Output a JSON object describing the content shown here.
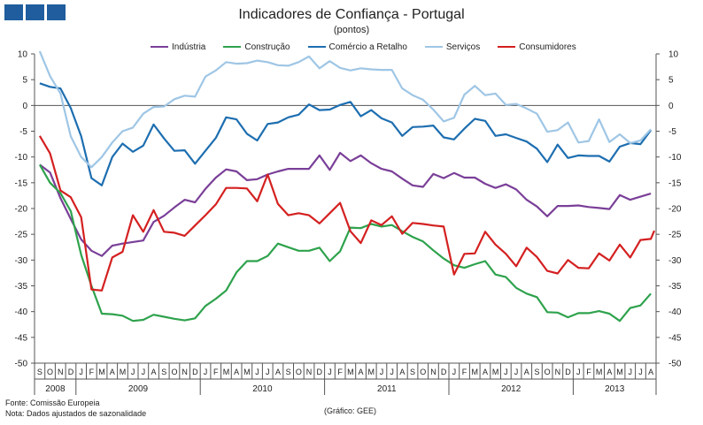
{
  "title": "Indicadores de Confiança - Portugal",
  "subtitle": "(pontos)",
  "footer": {
    "source": "Fonte: Comissão Europeia",
    "note": "Nota: Dados ajustados de sazonalidade",
    "credit": "(Gráfico: GEE)"
  },
  "colors": {
    "brand_blocks": "#1f5d9e",
    "axis": "#444444"
  },
  "chart_data": {
    "type": "line",
    "title": "Indicadores de Confiança - Portugal",
    "subtitle": "(pontos)",
    "ylim": [
      -50,
      10
    ],
    "yticks": [
      10,
      5,
      0,
      -5,
      -10,
      -15,
      -20,
      -25,
      -30,
      -35,
      -40,
      -45,
      -50
    ],
    "y2ticks": [
      10,
      5,
      0,
      -5,
      -10,
      -15,
      -20,
      -25,
      -30,
      -35,
      -40,
      -45,
      -50
    ],
    "grid": false,
    "legend": "top",
    "month_labels": [
      "S",
      "O",
      "N",
      "D",
      "J",
      "F",
      "M",
      "A",
      "M",
      "J",
      "J",
      "A",
      "S",
      "O",
      "N",
      "D",
      "J",
      "F",
      "M",
      "A",
      "M",
      "J",
      "J",
      "A",
      "S",
      "O",
      "N",
      "D",
      "J",
      "F",
      "M",
      "A",
      "M",
      "J",
      "J",
      "A",
      "S",
      "O",
      "N",
      "D",
      "J",
      "F",
      "M",
      "A",
      "M",
      "J",
      "J",
      "A",
      "S",
      "O",
      "N",
      "D",
      "J",
      "F",
      "M",
      "A",
      "M",
      "J",
      "J",
      "A"
    ],
    "year_labels": [
      {
        "label": "2008",
        "start": 0,
        "end": 3
      },
      {
        "label": "2009",
        "start": 4,
        "end": 15
      },
      {
        "label": "2010",
        "start": 16,
        "end": 27
      },
      {
        "label": "2011",
        "start": 28,
        "end": 39
      },
      {
        "label": "2012",
        "start": 40,
        "end": 51
      },
      {
        "label": "2013",
        "start": 52,
        "end": 59
      }
    ],
    "series": [
      {
        "name": "Indústria",
        "color": "#7a3f98",
        "values": [
          -11.5,
          -13,
          -18,
          -22,
          -26,
          -28.2,
          -29.2,
          -27.2,
          -26.8,
          -26.5,
          -26.2,
          -22.6,
          -21.4,
          -19.8,
          -18.3,
          -18.8,
          -16.2,
          -14,
          -12.4,
          -12.8,
          -14.5,
          -14.3,
          -13.4,
          -12.8,
          -12.3,
          -12.3,
          -12.3,
          -9.7,
          -12.5,
          -9.2,
          -10.8,
          -9.7,
          -11.2,
          -12.3,
          -12.8,
          -14.2,
          -15.5,
          -15.8,
          -13.3,
          -14.1,
          -13.1,
          -14,
          -14,
          -15.2,
          -16,
          -15.3,
          -16.3,
          -18.3,
          -19.6,
          -21.5,
          -19.5,
          -19.5,
          -19.4,
          -19.7,
          -19.9,
          -20.1,
          -17.4,
          -18.3,
          -17.7,
          -17.1
        ]
      },
      {
        "name": "Construção",
        "color": "#2ea24c",
        "values": [
          -11.5,
          -15,
          -17,
          -20.5,
          -29,
          -35,
          -40.4,
          -40.5,
          -40.8,
          -41.8,
          -41.6,
          -40.6,
          -41,
          -41.4,
          -41.7,
          -41.3,
          -38.9,
          -37.5,
          -35.9,
          -32.4,
          -30.2,
          -30.2,
          -29.2,
          -26.8,
          -27.5,
          -28.2,
          -28.2,
          -27.6,
          -30.2,
          -28.3,
          -23.7,
          -23.8,
          -23,
          -23.5,
          -23.2,
          -24.4,
          -25.5,
          -26.4,
          -28.1,
          -29.7,
          -31,
          -31.5,
          -30.8,
          -30.2,
          -32.8,
          -33.3,
          -35.4,
          -36.5,
          -37.2,
          -40.1,
          -40.2,
          -41.1,
          -40.3,
          -40.3,
          -39.9,
          -40.4,
          -41.8,
          -39.3,
          -38.8,
          -36.5
        ]
      },
      {
        "name": "Comércio a Retalho",
        "color": "#1d6eb0",
        "values": [
          4.3,
          3.6,
          3.3,
          -0.5,
          -6,
          -14.1,
          -15.5,
          -10,
          -7.4,
          -9,
          -7.8,
          -3.7,
          -6.4,
          -8.8,
          -8.7,
          -11.3,
          -8.8,
          -6.3,
          -2.3,
          -2.7,
          -5.5,
          -6.8,
          -3.6,
          -3.3,
          -2.3,
          -1.8,
          0.2,
          -0.9,
          -0.8,
          0.1,
          0.7,
          -2.1,
          -0.9,
          -2.5,
          -3.3,
          -5.9,
          -4.2,
          -4.1,
          -3.9,
          -6.2,
          -6.6,
          -4.5,
          -2.6,
          -3,
          -5.9,
          -5.6,
          -6.3,
          -7,
          -8.4,
          -11,
          -7.6,
          -10.2,
          -9.7,
          -9.8,
          -9.8,
          -10.9,
          -8,
          -7.3,
          -7.5,
          -4.8
        ]
      },
      {
        "name": "Serviços",
        "color": "#9fc6e5",
        "values": [
          10.5,
          5.7,
          2.3,
          -6,
          -10,
          -12,
          -10,
          -7.2,
          -5,
          -4.3,
          -1.6,
          -0.3,
          -0.2,
          1.2,
          1.9,
          1.7,
          5.6,
          6.8,
          8.4,
          8.1,
          8.2,
          8.7,
          8.4,
          7.8,
          7.7,
          8.4,
          9.5,
          7.2,
          8.6,
          7.3,
          6.8,
          7.2,
          7,
          6.9,
          6.9,
          3.3,
          2,
          1.1,
          -0.8,
          -3.1,
          -2.4,
          2.1,
          3.8,
          2,
          2.3,
          0.1,
          0.3,
          -0.6,
          -1.6,
          -5.1,
          -4.8,
          -3.3,
          -7.2,
          -6.9,
          -2.7,
          -7.1,
          -5.6,
          -7.3,
          -6.8,
          -4.6
        ]
      },
      {
        "name": "Consumidores",
        "color": "#d42020",
        "values": [
          -5.9,
          -9.3,
          -16.5,
          -17.8,
          -21.7,
          -35.7,
          -35.9,
          -29.5,
          -28.4,
          -21.3,
          -24.5,
          -20.3,
          -24.5,
          -24.7,
          -25.3,
          -23.3,
          -21.3,
          -19.2,
          -16,
          -16,
          -16.1,
          -18.6,
          -13.4,
          -19.1,
          -21.3,
          -20.9,
          -21.3,
          -22.9,
          -20.9,
          -18.9,
          -24.4,
          -26.7,
          -22.3,
          -23.2,
          -21.5,
          -24.9,
          -22.8,
          -23,
          -23.3,
          -23.5,
          -32.8,
          -28.8,
          -28.7,
          -24.5,
          -27,
          -28.8,
          -31.2,
          -27.6,
          -29.4,
          -32.1,
          -32.6,
          -30,
          -31.5,
          -31.6,
          -28.7,
          -30.1,
          -27,
          -29.5,
          -26.1,
          -25.9
        ]
      }
    ],
    "extra_last_point": {
      "Consumidores": -24.3
    }
  }
}
